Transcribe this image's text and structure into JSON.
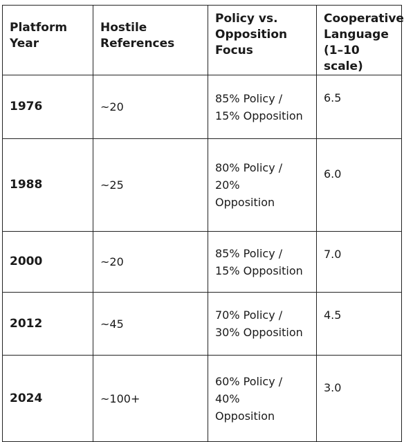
{
  "table": {
    "headers": [
      [
        "Platform",
        "Year"
      ],
      [
        "Hostile",
        "References"
      ],
      [
        "Policy vs.",
        "Opposition",
        "Focus"
      ],
      [
        "Cooperative",
        "Language",
        "(1–10 scale)"
      ]
    ],
    "rows": [
      {
        "year": "1976",
        "hostile": "~20",
        "focus": [
          "85% Policy /",
          "15% Opposition"
        ],
        "coop": "6.5"
      },
      {
        "year": "1988",
        "hostile": "~25",
        "focus": [
          "80% Policy /",
          "20%",
          "Opposition"
        ],
        "coop": "6.0"
      },
      {
        "year": "2000",
        "hostile": "~20",
        "focus": [
          "85% Policy /",
          "15% Opposition"
        ],
        "coop": "7.0"
      },
      {
        "year": "2012",
        "hostile": "~45",
        "focus": [
          "70% Policy /",
          "30% Opposition"
        ],
        "coop": "4.5"
      },
      {
        "year": "2024",
        "hostile": "~100+",
        "focus": [
          "60% Policy /",
          "40%",
          "Opposition"
        ],
        "coop": "3.0"
      }
    ]
  }
}
